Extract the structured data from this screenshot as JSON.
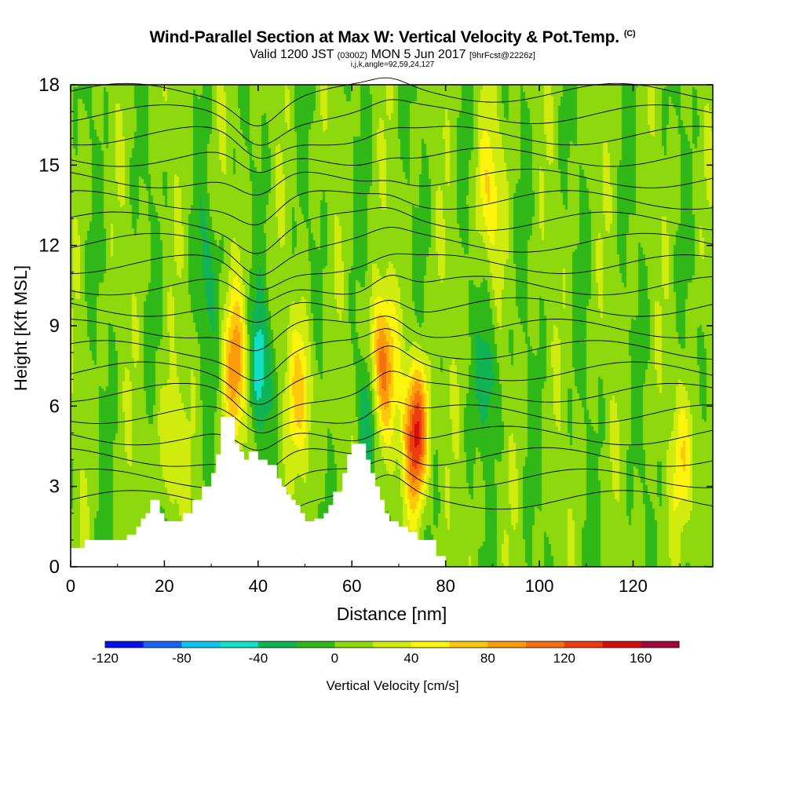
{
  "header": {
    "title": "Wind-Parallel Section at Max W: Vertical Velocity & Pot.Temp.",
    "title_tag": "(C)",
    "valid_prefix": "Valid 1200 JST",
    "valid_utc": "(0300Z)",
    "valid_date": "MON 5 Jun 2017",
    "valid_fcst": "[9hrFcst@2226z]",
    "indices": "i,j,k,angle=92,59,24,127"
  },
  "colorbar": {
    "label": "Vertical Velocity [cm/s]",
    "ticks": [
      "-120",
      "-80",
      "-40",
      "0",
      "40",
      "80",
      "120",
      "160"
    ],
    "tick_values": [
      -120,
      -80,
      -40,
      0,
      40,
      80,
      120,
      160
    ],
    "bins": [
      -120,
      -100,
      -80,
      -60,
      -40,
      -20,
      0,
      20,
      40,
      60,
      80,
      100,
      120,
      140,
      160,
      180
    ],
    "colors": [
      "#0a10e8",
      "#1764f0",
      "#10c4f0",
      "#10e0c4",
      "#10b454",
      "#30b818",
      "#8ed80e",
      "#d0ec0e",
      "#fcf40c",
      "#fcc80c",
      "#fc9c0c",
      "#f47010",
      "#ec3c10",
      "#d80c0c",
      "#a0083c",
      "#6c0c8c"
    ]
  },
  "chart_data": {
    "type": "heatmap",
    "title": "Wind-Parallel Section at Max W: Vertical Velocity & Pot.Temp.",
    "xlabel": "Distance [nm]",
    "ylabel": "Height [Kft MSL]",
    "xlim": [
      0,
      137
    ],
    "ylim": [
      0,
      18
    ],
    "x_ticks": [
      0,
      20,
      40,
      60,
      80,
      100,
      120
    ],
    "y_ticks": [
      0,
      3,
      6,
      9,
      12,
      15,
      18
    ],
    "field": "vertical velocity (cm/s), filled contours",
    "contours": "potential temperature (C), black lines",
    "max_updraft_cm_s": 160,
    "min_downdraft_cm_s": -60,
    "features": [
      {
        "kind": "updraft",
        "x": 73.5,
        "y": 5,
        "peak": 140
      },
      {
        "kind": "updraft",
        "x": 66,
        "y": 7.5,
        "peak": 110
      },
      {
        "kind": "updraft",
        "x": 35,
        "y": 7.5,
        "peak": 80
      },
      {
        "kind": "updraft",
        "x": 49,
        "y": 6.5,
        "peak": 60
      },
      {
        "kind": "updraft",
        "x": 89,
        "y": 14,
        "peak": 50
      },
      {
        "kind": "updraft",
        "x": 131,
        "y": 4,
        "peak": 50
      },
      {
        "kind": "updraft",
        "x": 21,
        "y": 4.5,
        "peak": 40
      },
      {
        "kind": "downdraft",
        "x": 40,
        "y": 7.5,
        "peak": -60
      },
      {
        "kind": "downdraft",
        "x": 63,
        "y": 6,
        "peak": -50
      },
      {
        "kind": "downdraft",
        "x": 89,
        "y": 7,
        "peak": -40
      },
      {
        "kind": "downdraft",
        "x": 29,
        "y": 11,
        "peak": -30
      }
    ],
    "terrain": {
      "x": [
        0,
        3,
        3,
        12,
        12,
        14,
        14,
        15,
        15,
        16,
        16,
        17,
        17,
        19,
        19,
        20,
        20,
        24,
        24,
        26,
        26,
        28,
        28,
        30,
        30,
        31,
        31,
        32,
        32,
        35,
        35,
        36,
        36,
        37,
        37,
        38,
        38,
        40,
        40,
        42,
        42,
        44,
        44,
        45,
        45,
        46,
        46,
        47,
        47,
        48,
        48,
        49,
        49,
        50,
        50,
        52,
        52,
        54,
        54,
        55,
        55,
        56,
        56,
        58,
        58,
        59,
        59,
        60,
        60,
        63,
        63,
        64,
        64,
        65,
        65,
        66,
        66,
        67,
        67,
        68,
        68,
        70,
        70,
        72,
        72,
        74,
        74,
        78,
        78,
        80
      ],
      "y": [
        0.7,
        0.7,
        1.0,
        1.0,
        1.2,
        1.2,
        1.5,
        1.5,
        1.8,
        1.8,
        2.0,
        2.0,
        2.5,
        2.5,
        2.0,
        2.0,
        1.7,
        1.7,
        2.0,
        2.0,
        2.5,
        2.5,
        3.0,
        3.0,
        3.5,
        3.5,
        4.2,
        4.2,
        5.6,
        5.6,
        4.6,
        4.6,
        4.3,
        4.3,
        4.0,
        4.0,
        4.3,
        4.3,
        4.0,
        4.0,
        3.8,
        3.8,
        3.3,
        3.3,
        3.0,
        3.0,
        2.7,
        2.7,
        2.5,
        2.5,
        2.3,
        2.3,
        2.0,
        2.0,
        1.7,
        1.7,
        1.8,
        1.8,
        2.0,
        2.0,
        2.3,
        2.3,
        2.8,
        2.8,
        3.5,
        3.5,
        4.2,
        4.2,
        4.6,
        4.6,
        4.0,
        4.0,
        3.5,
        3.5,
        3.0,
        3.0,
        2.5,
        2.5,
        2.0,
        2.0,
        1.7,
        1.7,
        1.5,
        1.5,
        1.3,
        1.3,
        1.0,
        1.0,
        0.4,
        0.4
      ]
    }
  }
}
